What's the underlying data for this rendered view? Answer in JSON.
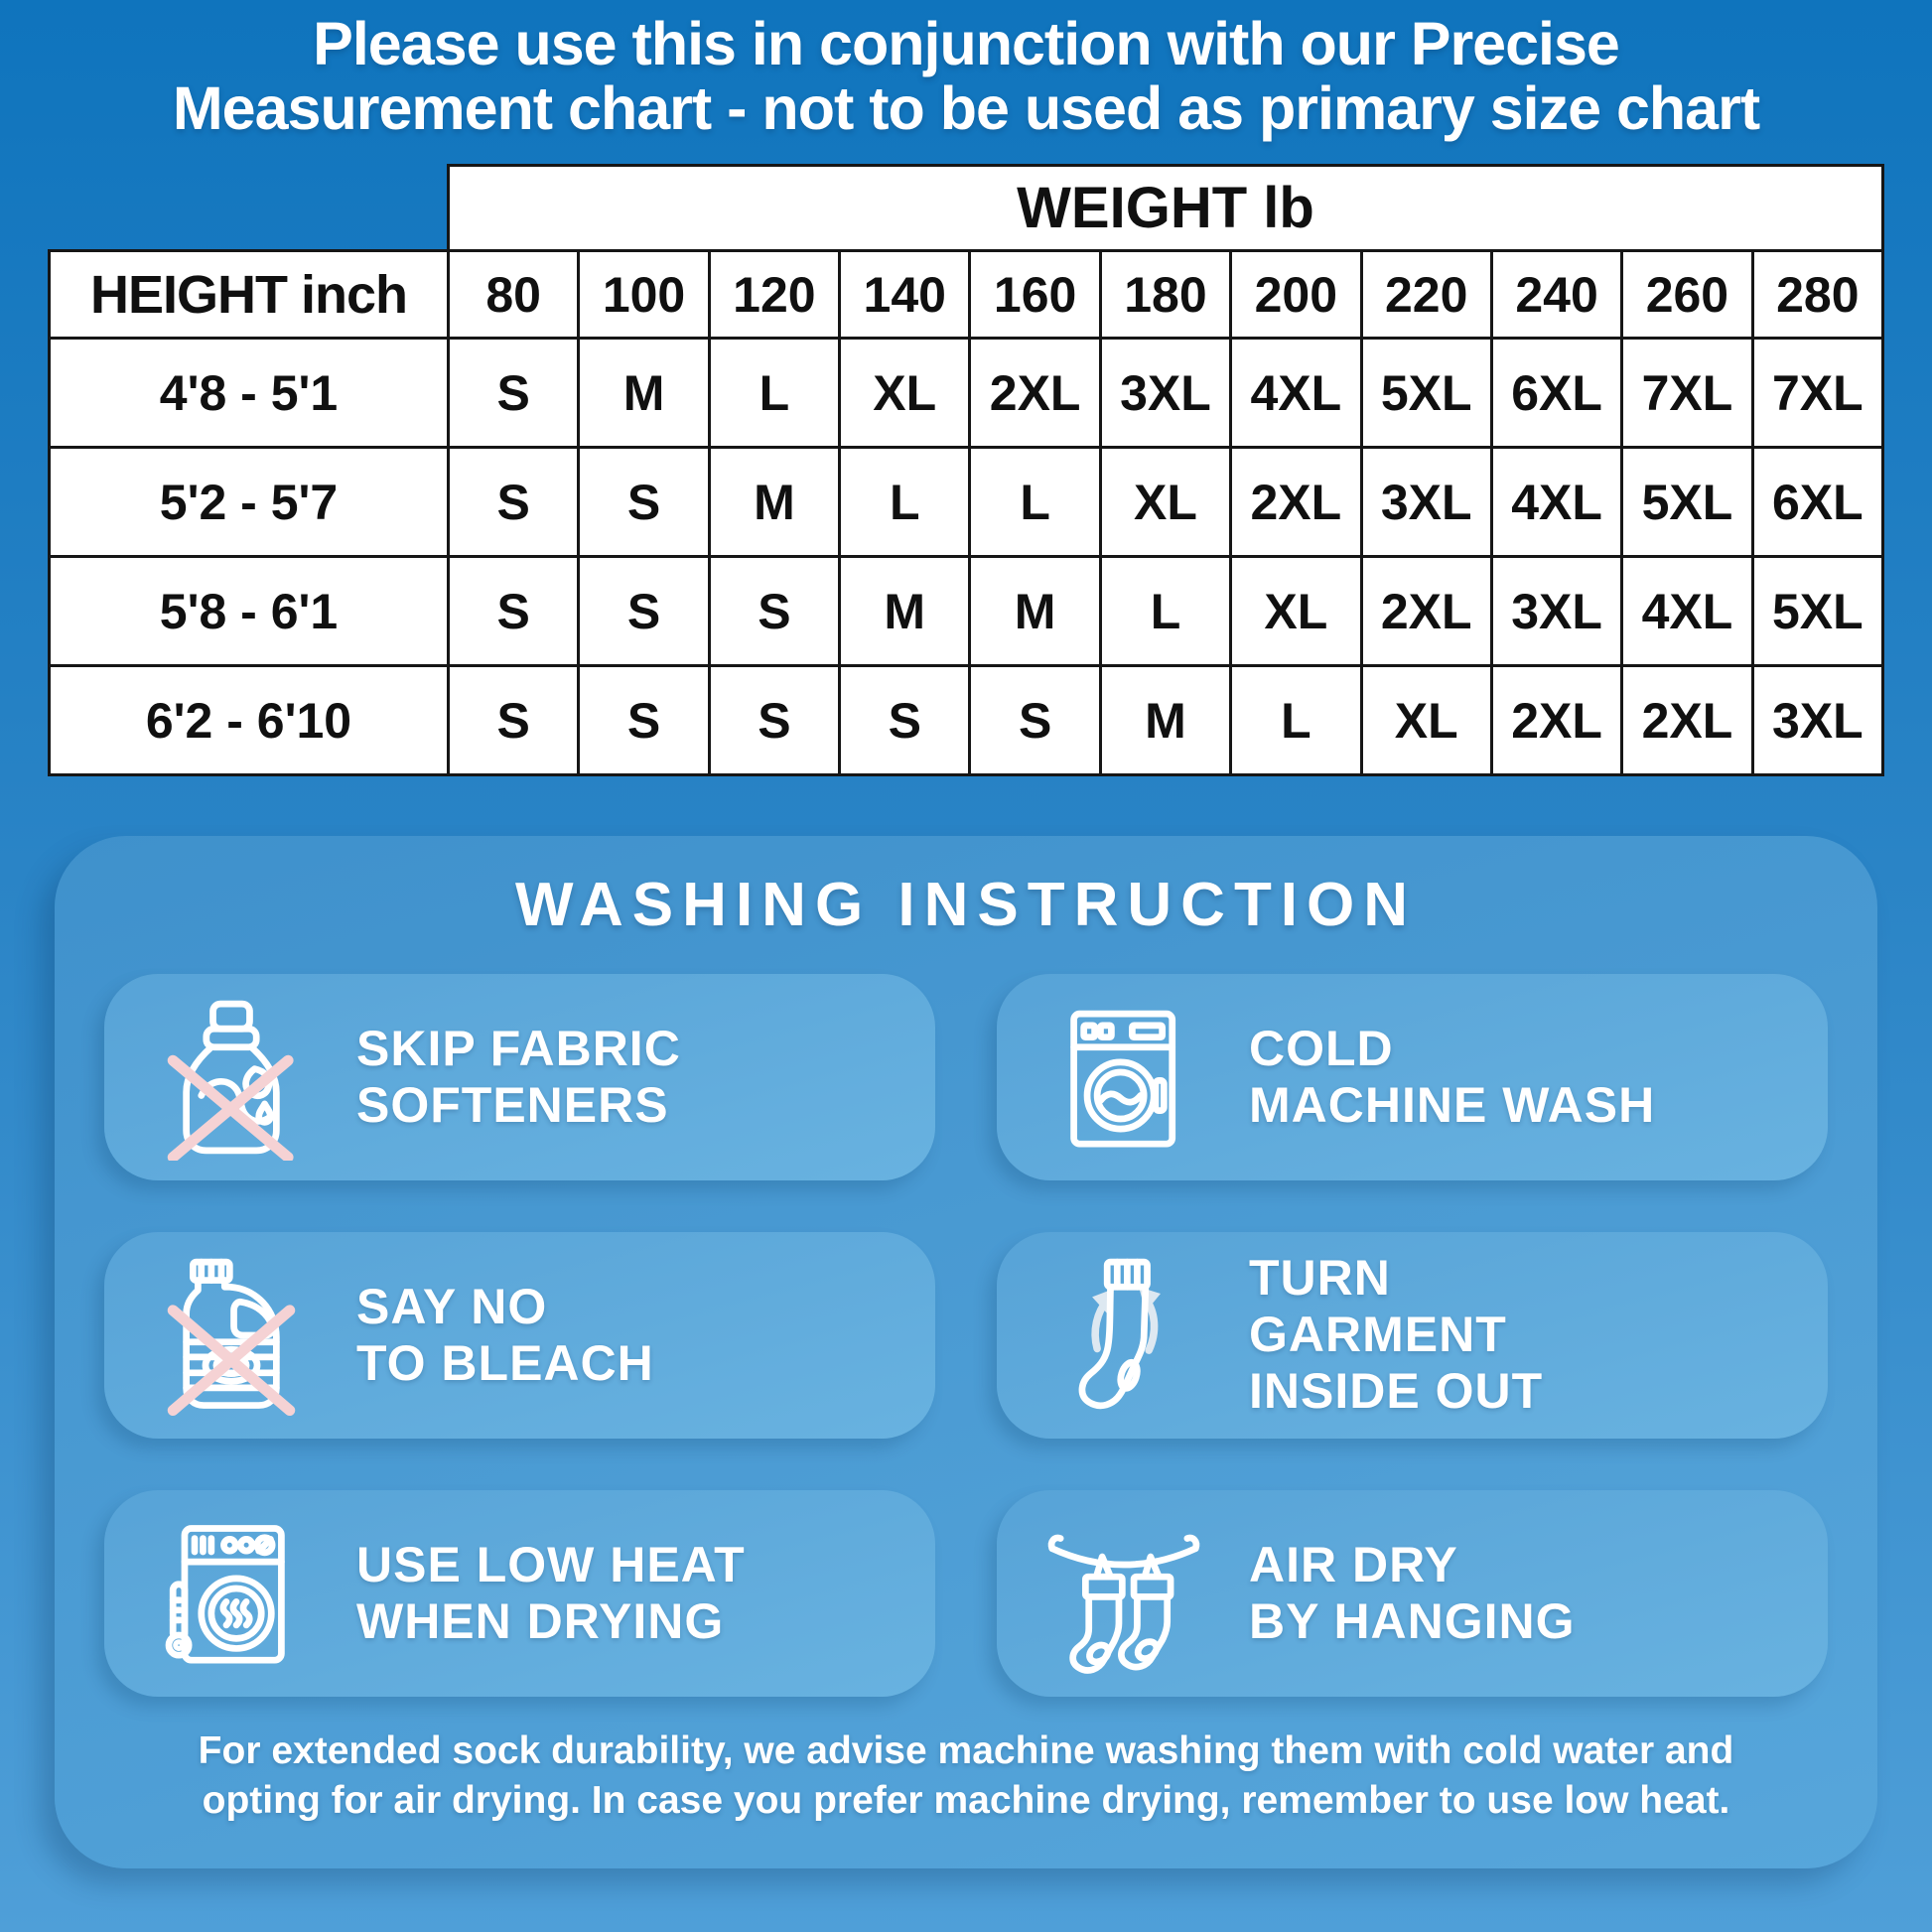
{
  "colors": {
    "background_top": "#0f74bd",
    "background_mid": "#2a84c6",
    "background_bottom": "#4f9fd8",
    "panel_top": "#3f91cc",
    "panel_bottom": "#57a6db",
    "card_top": "#57a3d7",
    "card_bottom": "#68b2e0",
    "cross_pink": "#f5d2d4",
    "arrow_grey": "#dde8f1",
    "table_border": "#161616",
    "table_text": "#101010",
    "text_white": "#ffffff"
  },
  "disclaimer": "Please use this in conjunction with our Precise\nMeasurement chart - not to be used as primary size chart",
  "size_chart": {
    "weight_header": "WEIGHT lb",
    "height_header": "HEIGHT inch",
    "weights": [
      "80",
      "100",
      "120",
      "140",
      "160",
      "180",
      "200",
      "220",
      "240",
      "260",
      "280"
    ],
    "rows": [
      {
        "height": "4'8 - 5'1",
        "sizes": [
          "S",
          "M",
          "L",
          "XL",
          "2XL",
          "3XL",
          "4XL",
          "5XL",
          "6XL",
          "7XL",
          "7XL"
        ]
      },
      {
        "height": "5'2 - 5'7",
        "sizes": [
          "S",
          "S",
          "M",
          "L",
          "L",
          "XL",
          "2XL",
          "3XL",
          "4XL",
          "5XL",
          "6XL"
        ]
      },
      {
        "height": "5'8 - 6'1",
        "sizes": [
          "S",
          "S",
          "S",
          "M",
          "M",
          "L",
          "XL",
          "2XL",
          "3XL",
          "4XL",
          "5XL"
        ]
      },
      {
        "height": "6'2 - 6'10",
        "sizes": [
          "S",
          "S",
          "S",
          "S",
          "S",
          "M",
          "L",
          "XL",
          "2XL",
          "2XL",
          "3XL"
        ]
      }
    ]
  },
  "washing": {
    "title": "WASHING INSTRUCTION",
    "cards": [
      {
        "icon": "no-fabric-softener-icon",
        "label": "SKIP FABRIC\nSOFTENERS"
      },
      {
        "icon": "washing-machine-icon",
        "label": "COLD\nMACHINE WASH"
      },
      {
        "icon": "no-bleach-icon",
        "label": "SAY NO\nTO BLEACH"
      },
      {
        "icon": "sock-inside-out-icon",
        "label": "TURN\nGARMENT\nINSIDE OUT"
      },
      {
        "icon": "dryer-low-heat-icon",
        "label": "USE LOW HEAT\nWHEN DRYING"
      },
      {
        "icon": "air-dry-hanging-icon",
        "label": "AIR DRY\nBY HANGING"
      }
    ],
    "footer": "For extended sock durability, we advise machine washing them with cold water and\nopting for air drying. In case you prefer machine drying, remember to use low heat."
  }
}
